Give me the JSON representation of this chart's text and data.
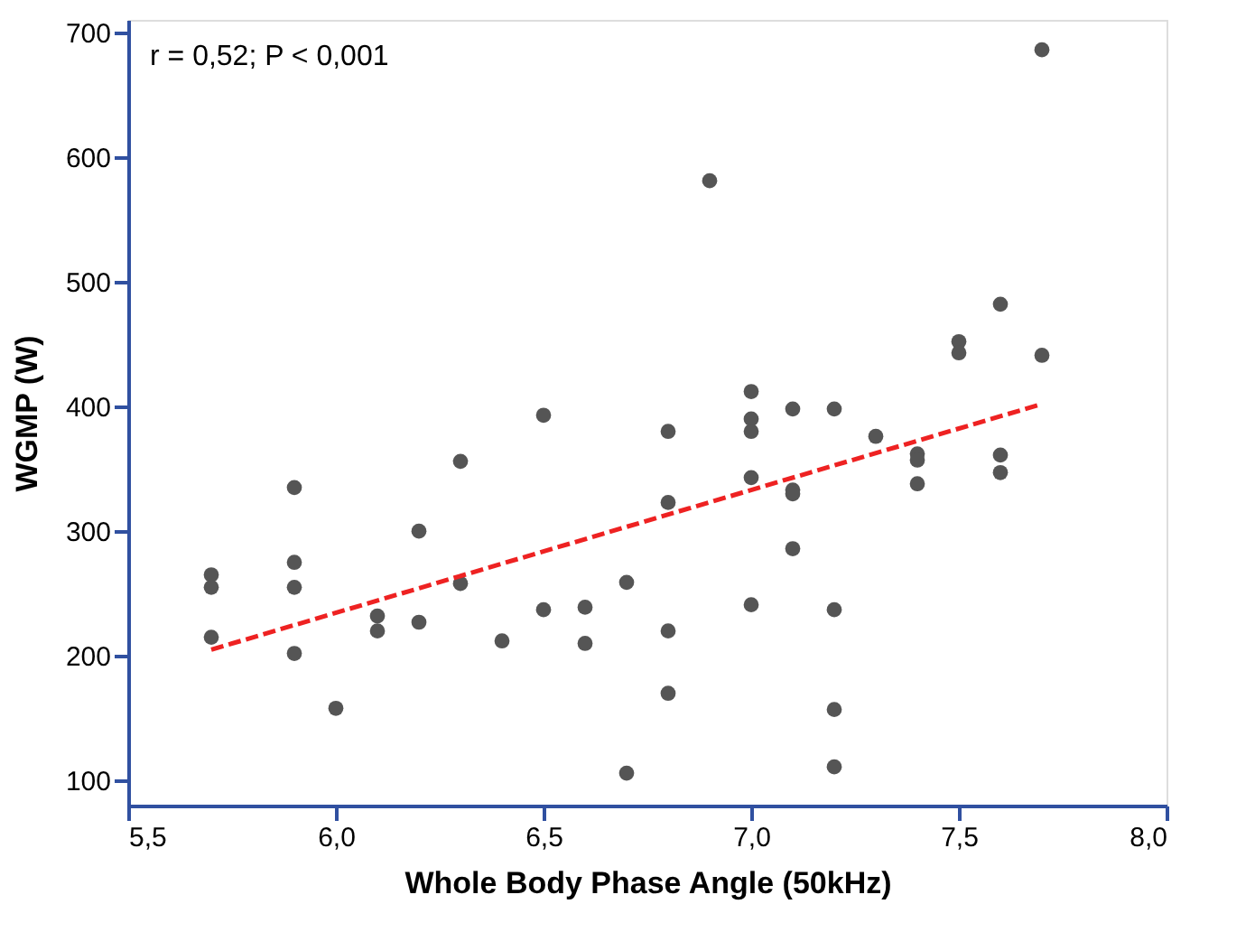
{
  "chart_data": {
    "type": "scatter",
    "xlabel": "Whole Body Phase Angle (50kHz)",
    "ylabel": "WGMP (W)",
    "xlim": [
      5.5,
      8.0
    ],
    "xticks": [
      {
        "value": 5.5,
        "label": "5,5"
      },
      {
        "value": 6.0,
        "label": "6,0"
      },
      {
        "value": 6.5,
        "label": "6,5"
      },
      {
        "value": 7.0,
        "label": "7,0"
      },
      {
        "value": 7.5,
        "label": "7,5"
      },
      {
        "value": 8.0,
        "label": "8,0"
      }
    ],
    "ylim": [
      80,
      710
    ],
    "yticks": [
      100,
      200,
      300,
      400,
      500,
      600,
      700
    ],
    "grid": false,
    "marker": "circle",
    "annotations": [
      "r = 0,52; P < 0,001"
    ],
    "series": [
      {
        "color": "#555555",
        "x": [
          5.7,
          5.7,
          5.7,
          5.9,
          5.9,
          5.9,
          5.9,
          6.0,
          6.1,
          6.1,
          6.2,
          6.2,
          6.3,
          6.3,
          6.4,
          6.5,
          6.5,
          6.6,
          6.6,
          6.7,
          6.7,
          6.8,
          6.8,
          6.8,
          6.8,
          6.9,
          7.0,
          7.0,
          7.0,
          7.0,
          7.0,
          7.1,
          7.1,
          7.1,
          7.1,
          7.2,
          7.2,
          7.2,
          7.2,
          7.3,
          7.4,
          7.4,
          7.4,
          7.5,
          7.5,
          7.6,
          7.6,
          7.6,
          7.7,
          7.7
        ],
        "values": [
          265,
          255,
          215,
          335,
          275,
          255,
          202,
          158,
          232,
          220,
          300,
          227,
          356,
          258,
          212,
          393,
          237,
          239,
          210,
          259,
          106,
          380,
          323,
          220,
          170,
          581,
          412,
          390,
          380,
          343,
          241,
          398,
          333,
          330,
          286,
          398,
          237,
          157,
          111,
          376,
          362,
          357,
          338,
          452,
          443,
          482,
          361,
          347,
          686,
          441
        ]
      },
      {
        "type": "line",
        "color": "#ee2222",
        "line_style": "dashed",
        "marker": "none",
        "x": [
          5.7,
          7.7
        ],
        "values": [
          205,
          402
        ]
      }
    ]
  }
}
